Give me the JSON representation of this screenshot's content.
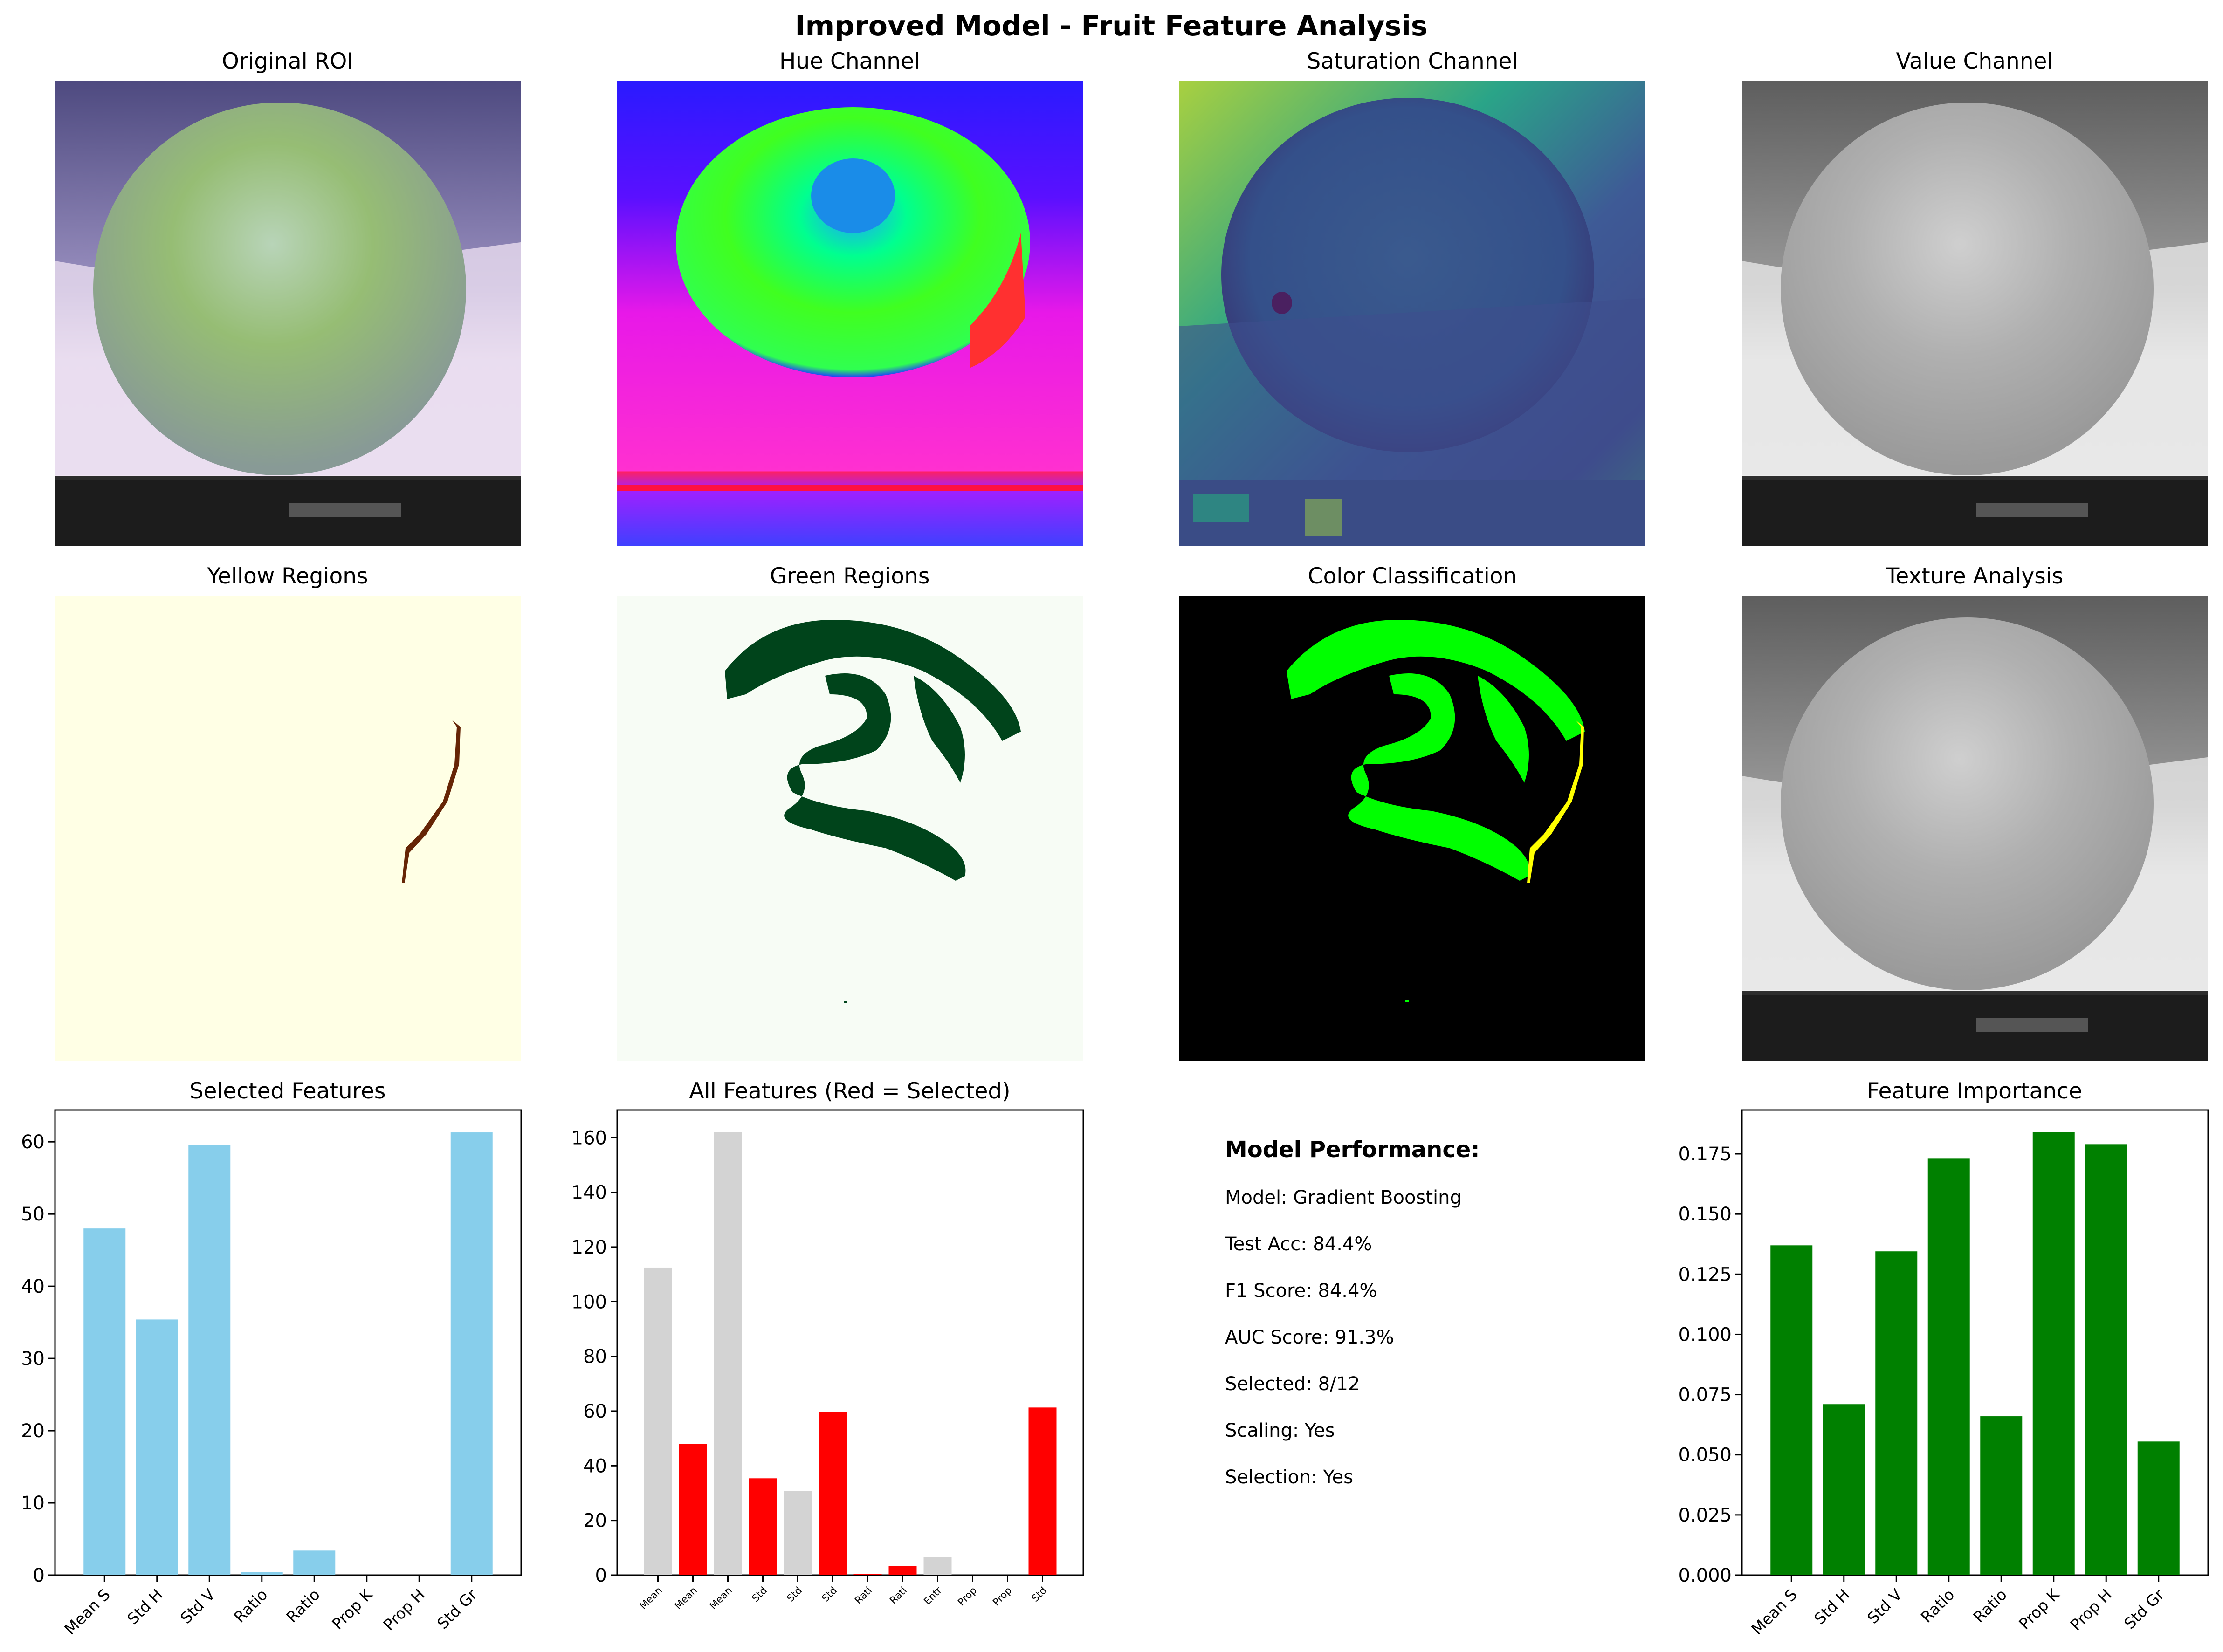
{
  "suptitle": "Improved Model - Fruit Feature Analysis",
  "panels": {
    "original_roi": "Original ROI",
    "hue": "Hue Channel",
    "saturation": "Saturation Channel",
    "value": "Value Channel",
    "yellow": "Yellow Regions",
    "green": "Green Regions",
    "color_class": "Color Classification",
    "texture": "Texture Analysis"
  },
  "colors": {
    "skyblue": "#87ceeb",
    "red": "#ff0000",
    "lightgray": "#d3d3d3",
    "green": "#008000",
    "yellow_bg": "#ffffe5",
    "yellow_mask": "#662506",
    "green_bg": "#f7fcf5",
    "green_mask": "#00441b",
    "class_green": "#00ff00",
    "class_yellow": "#ffff00"
  },
  "performance": {
    "title": "Model Performance:",
    "lines": [
      "Model: Gradient Boosting",
      "Test Acc: 84.4%",
      "F1 Score: 84.4%",
      "AUC Score: 91.3%",
      "Selected: 8/12",
      "Scaling: Yes",
      "Selection: Yes"
    ]
  },
  "chart_data": [
    {
      "type": "bar",
      "title": "Selected Features",
      "categories": [
        "Mean S",
        "Std H",
        "Std V",
        "Ratio",
        "Ratio",
        "Prop K",
        "Prop H",
        "Std Gr"
      ],
      "values": [
        48.0,
        35.4,
        59.5,
        0.4,
        3.4,
        0.0,
        0.0,
        61.3
      ],
      "ylim": [
        0,
        64.4
      ],
      "yticks": [
        0,
        10,
        20,
        30,
        40,
        50,
        60
      ],
      "color": "skyblue"
    },
    {
      "type": "bar",
      "title": "All Features (Red = Selected)",
      "categories": [
        "Mean",
        "Mean",
        "Mean",
        "Std",
        "Std",
        "Std",
        "Rati",
        "Rati",
        "Entr",
        "Prop",
        "Prop",
        "Std"
      ],
      "values": [
        112.5,
        48.0,
        162.0,
        35.4,
        30.8,
        59.5,
        0.4,
        3.4,
        6.5,
        0.0,
        0.0,
        61.3
      ],
      "selected": [
        false,
        true,
        false,
        true,
        false,
        true,
        true,
        true,
        false,
        true,
        true,
        true
      ],
      "ylim": [
        0,
        170.1
      ],
      "yticks": [
        0,
        20,
        40,
        60,
        80,
        100,
        120,
        140,
        160
      ]
    },
    {
      "type": "bar",
      "title": "Feature Importance",
      "categories": [
        "Mean S",
        "Std H",
        "Std V",
        "Ratio",
        "Ratio",
        "Prop K",
        "Prop H",
        "Std Gr"
      ],
      "values": [
        0.137,
        0.071,
        0.1345,
        0.173,
        0.066,
        0.184,
        0.179,
        0.0555
      ],
      "ylim": [
        0,
        0.1932
      ],
      "yticks": [
        "0.000",
        "0.025",
        "0.050",
        "0.075",
        "0.100",
        "0.125",
        "0.150",
        "0.175"
      ],
      "color": "green"
    }
  ]
}
